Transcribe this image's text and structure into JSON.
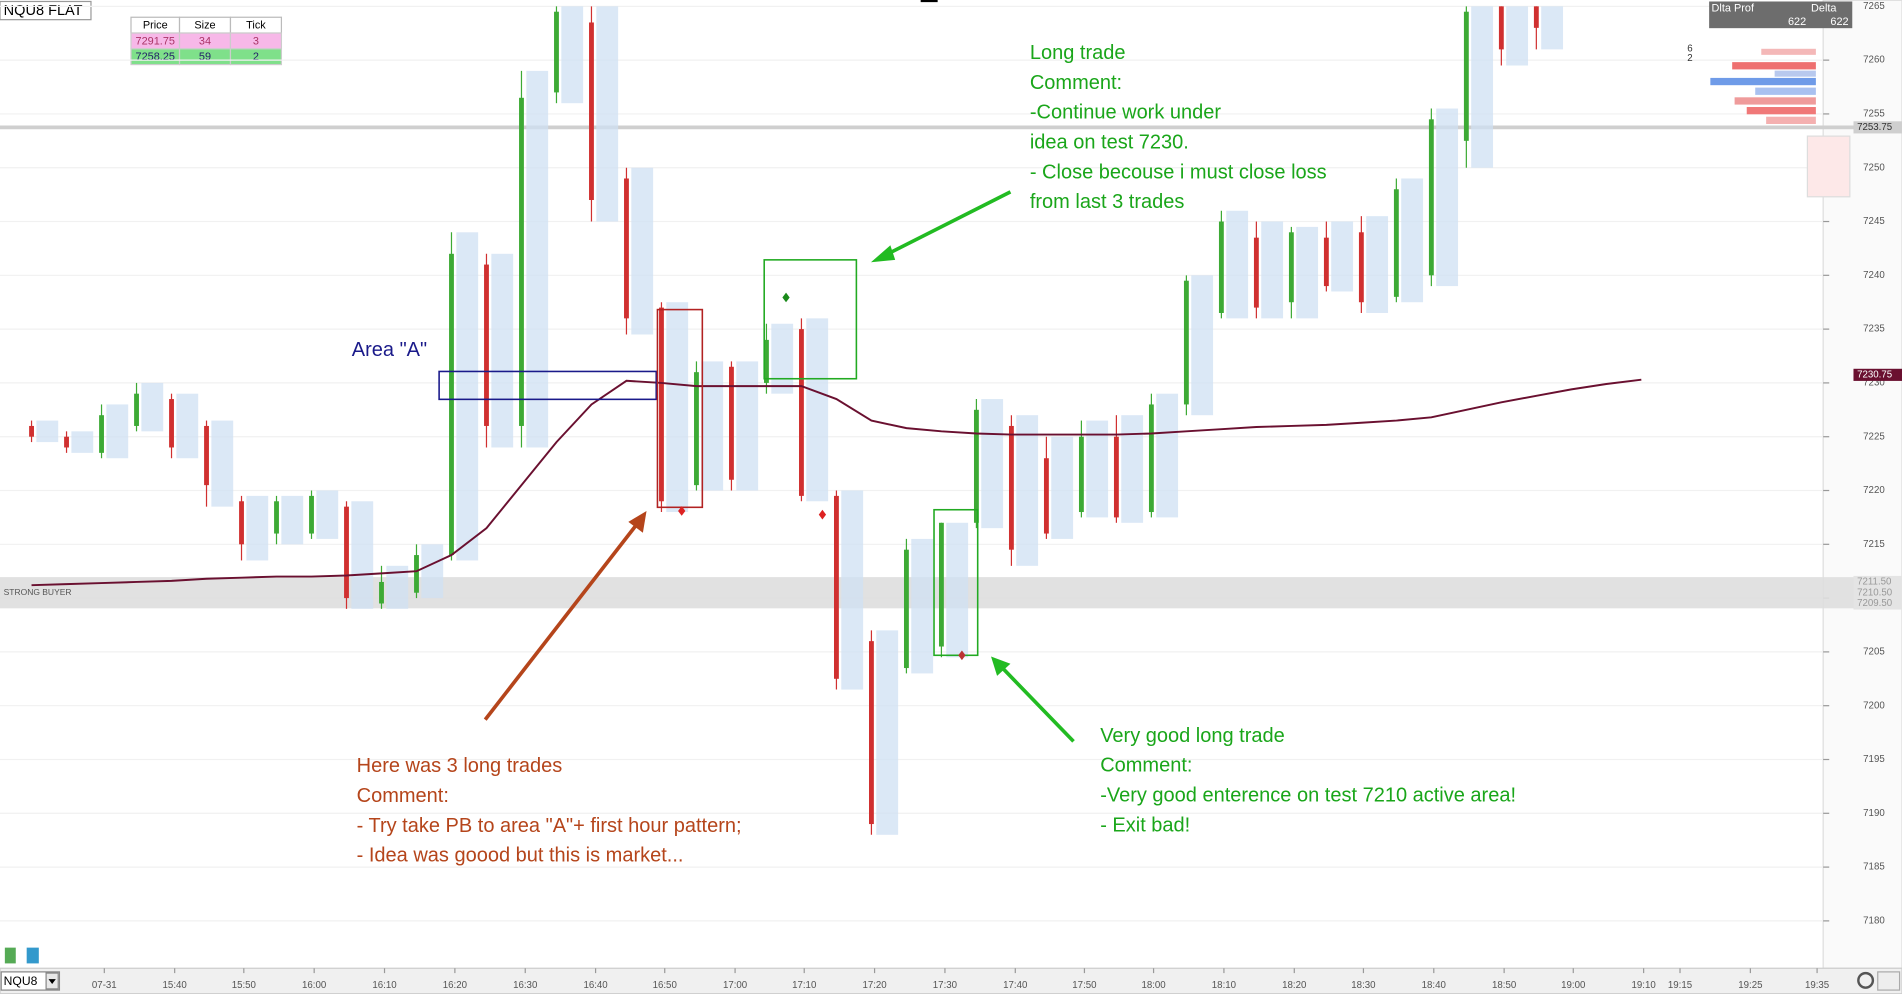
{
  "header": {
    "instrument_status": "NQU8 FLAT"
  },
  "order_table": {
    "columns": [
      "Price",
      "Size",
      "Tick"
    ],
    "rows": [
      [
        "7291.75",
        "34",
        "3"
      ],
      [
        "7258.25",
        "59",
        "2"
      ]
    ]
  },
  "chart": {
    "price_ticks": [
      7265,
      7260,
      7255,
      7250,
      7245,
      7240,
      7235,
      7230,
      7225,
      7220,
      7215,
      7210,
      7205,
      7200,
      7195,
      7190,
      7185,
      7180
    ],
    "time_labels": [
      "07-31",
      "15:40",
      "15:50",
      "16:00",
      "16:10",
      "16:20",
      "16:30",
      "16:40",
      "16:50",
      "17:00",
      "17:10",
      "17:20",
      "17:30",
      "17:40",
      "17:50",
      "18:00",
      "18:10",
      "18:20",
      "18:30",
      "18:40",
      "18:50",
      "19:00",
      "19:10",
      "19:15",
      "19:25",
      "19:35"
    ],
    "bars": {
      "open": [
        7226,
        7225,
        7223.5,
        7226,
        7228.5,
        7226,
        7219,
        7216,
        7216,
        7218.5,
        7209.5,
        7210.5,
        7214,
        7241,
        7226,
        7257,
        7263.5,
        7249,
        7237,
        7220.5,
        7231.5,
        7230,
        7235,
        7219.5,
        7206,
        7203.5,
        7205.5,
        7217,
        7226,
        7223,
        7218,
        7225,
        7218,
        7228,
        7236.5,
        7243.5,
        7237.5,
        7243.5,
        7244,
        7238,
        7240,
        7252.5,
        7265,
        7265
      ],
      "high": [
        7226.5,
        7225.5,
        7228,
        7230,
        7229,
        7226.5,
        7219.5,
        7219.5,
        7220,
        7219,
        7213,
        7215,
        7244,
        7242,
        7259,
        7265,
        7265,
        7250,
        7237.5,
        7232,
        7232,
        7235.5,
        7236,
        7220,
        7207,
        7215.5,
        7217,
        7228.5,
        7227,
        7225,
        7226.5,
        7227,
        7229,
        7240,
        7246,
        7245,
        7244.5,
        7245,
        7245.5,
        7249,
        7255.5,
        7265,
        7265,
        7265
      ],
      "low": [
        7224.5,
        7223.5,
        7223,
        7225.5,
        7223,
        7218.5,
        7213.5,
        7215,
        7215.5,
        7209,
        7209,
        7210,
        7213.5,
        7224,
        7224,
        7256,
        7245,
        7234.5,
        7218,
        7220,
        7220,
        7229,
        7219,
        7201.5,
        7188,
        7203,
        7204.5,
        7216.5,
        7213,
        7215.5,
        7217.5,
        7217,
        7217.5,
        7227,
        7236,
        7236,
        7236,
        7238.5,
        7236.5,
        7237.5,
        7239,
        7250,
        7259.5,
        7261
      ],
      "close": [
        7225,
        7224,
        7227,
        7229,
        7224,
        7220.5,
        7215,
        7219,
        7219.5,
        7210,
        7211.5,
        7214,
        7242,
        7226,
        7256.5,
        7264.5,
        7247,
        7236,
        7219,
        7231,
        7221,
        7234,
        7219.5,
        7202.5,
        7189,
        7214.5,
        7217,
        7227.5,
        7214.5,
        7216,
        7225,
        7217.5,
        7228,
        7239.5,
        7245,
        7237,
        7244,
        7239,
        7237.5,
        7248,
        7254.5,
        7264.5,
        7261,
        7263
      ]
    },
    "vwap": [
      7211.2,
      7211.3,
      7211.4,
      7211.5,
      7211.6,
      7211.8,
      7211.9,
      7212,
      7212,
      7212.1,
      7212.3,
      7212.5,
      7214,
      7216.5,
      7220.5,
      7224.5,
      7228,
      7230.2,
      7230,
      7229.7,
      7229.7,
      7229.7,
      7229.7,
      7228.5,
      7226.5,
      7225.8,
      7225.5,
      7225.3,
      7225.2,
      7225.2,
      7225.2,
      7225.2,
      7225.3,
      7225.5,
      7225.7,
      7225.9,
      7226,
      7226.1,
      7226.3,
      7226.5,
      7226.8,
      7227.5,
      7228.2,
      7228.8,
      7229.4,
      7229.9,
      7230.3
    ],
    "price_tags": [
      7253.75,
      7230.75,
      {
        "value": 7211.5,
        "label": "7211.50"
      },
      {
        "value": 7210.5,
        "label": "7210.50"
      },
      {
        "value": 7209.5,
        "label": "7209.50"
      }
    ],
    "level_label": "STRONG BUYER"
  },
  "annotations": {
    "area_a": "Area \"A\"",
    "long_trade": [
      "Long trade",
      "Comment:",
      "-Continue work under",
      "idea on test 7230.",
      "- Close becouse i must close loss",
      "from last 3 trades"
    ],
    "three_trades": [
      "Here was 3 long trades",
      "Comment:",
      "- Try take PB to area \"A\"+ first hour pattern;",
      "- Idea was goood but this is market..."
    ],
    "very_good": [
      "Very good long trade",
      "Comment:",
      "-Very good enterence on test 7210 active area!",
      "- Exit bad!"
    ]
  },
  "dom": {
    "headers": [
      "Dlta Prof",
      "Delta"
    ],
    "totals": [
      "622",
      "622"
    ],
    "side_values": [
      "6",
      "2"
    ]
  },
  "footer": {
    "instrument": "NQU8"
  }
}
